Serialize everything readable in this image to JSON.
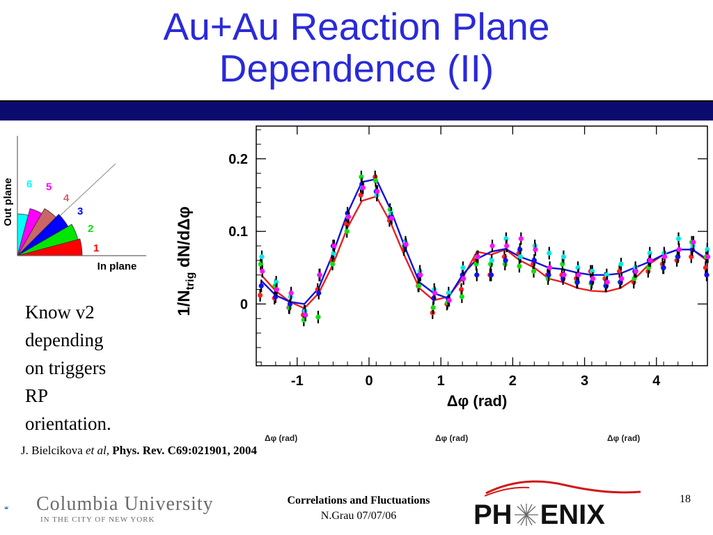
{
  "slide": {
    "title_line1": "Au+Au Reaction Plane",
    "title_line2": "Dependence (II)",
    "body_lines": [
      "Know v2",
      "depending",
      "on triggers",
      "RP",
      "orientation."
    ],
    "citation_author": "J. Bielcikova",
    "citation_etal": "et al",
    "citation_sep": ",",
    "citation_ref": "Phys. Rev. C69:021901, 2004",
    "ghost_labels": [
      "Δφ (rad)",
      "Δφ (rad)",
      "Δφ (rad)"
    ],
    "footer_title": "Correlations and Fluctuations",
    "footer_author_date": "N.Grau 07/07/06",
    "page_number": "18"
  },
  "logos": {
    "columbia_name": "Columbia University",
    "columbia_sub": "IN THE CITY OF NEW YORK",
    "phenix_left": "PH",
    "phenix_right": "ENIX"
  },
  "inset": {
    "y_label": "Out plane",
    "x_label": "In plane",
    "wedges": [
      {
        "label": "1",
        "color": "#ff0000"
      },
      {
        "label": "2",
        "color": "#00e600"
      },
      {
        "label": "3",
        "color": "#0000ff"
      },
      {
        "label": "4",
        "color": "#cc6666"
      },
      {
        "label": "5",
        "color": "#ff00ff"
      },
      {
        "label": "6",
        "color": "#00ffff"
      }
    ]
  },
  "chart_data": {
    "type": "line",
    "ylabel_main": "1/N",
    "ylabel_sub": "trig",
    "ylabel_rest": " dN/dΔφ",
    "xlabel": "Δφ (rad)",
    "xlim": [
      -1.57,
      4.71
    ],
    "ylim": [
      -0.085,
      0.245
    ],
    "xticks": [
      -1,
      0,
      1,
      2,
      3,
      4
    ],
    "xtick_labels": [
      "-1",
      "0",
      "1",
      "2",
      "3",
      "4"
    ],
    "yticks": [
      0,
      0.1,
      0.2
    ],
    "ytick_labels": [
      "0",
      "0.1",
      "0.2"
    ],
    "x": [
      -1.5,
      -1.3,
      -1.1,
      -0.9,
      -0.7,
      -0.5,
      -0.3,
      -0.1,
      0.1,
      0.3,
      0.5,
      0.7,
      0.9,
      1.1,
      1.3,
      1.5,
      1.7,
      1.9,
      2.1,
      2.3,
      2.5,
      2.7,
      2.9,
      3.1,
      3.3,
      3.5,
      3.7,
      3.9,
      4.1,
      4.3,
      4.5,
      4.7
    ],
    "lines": [
      {
        "color": "#e82020",
        "values": [
          0.04,
          0.018,
          0.003,
          -0.006,
          0.015,
          0.055,
          0.105,
          0.142,
          0.148,
          0.112,
          0.065,
          0.022,
          0.005,
          0.01,
          0.035,
          0.072,
          0.068,
          0.075,
          0.06,
          0.05,
          0.035,
          0.03,
          0.022,
          0.018,
          0.017,
          0.022,
          0.035,
          0.055,
          0.068,
          0.075,
          0.075,
          0.06
        ]
      },
      {
        "color": "#1010e0",
        "values": [
          0.032,
          0.012,
          0.003,
          0.0,
          0.022,
          0.07,
          0.125,
          0.168,
          0.172,
          0.13,
          0.078,
          0.03,
          0.015,
          0.008,
          0.04,
          0.062,
          0.072,
          0.076,
          0.065,
          0.058,
          0.05,
          0.048,
          0.043,
          0.04,
          0.04,
          0.042,
          0.05,
          0.058,
          0.068,
          0.075,
          0.075,
          0.062
        ]
      }
    ],
    "points": [
      {
        "color": "#ff2020",
        "values": [
          0.012,
          0.008,
          -0.005,
          -0.015,
          0.02,
          0.06,
          0.11,
          0.15,
          0.175,
          0.115,
          0.075,
          0.025,
          -0.012,
          0.0,
          0.02,
          0.06,
          0.04,
          0.065,
          0.07,
          0.055,
          0.04,
          0.04,
          0.035,
          0.045,
          0.035,
          0.045,
          0.03,
          0.045,
          0.055,
          0.06,
          0.065,
          0.05
        ]
      },
      {
        "color": "#10e010",
        "values": [
          0.055,
          0.025,
          -0.005,
          -0.022,
          -0.018,
          0.055,
          0.1,
          0.175,
          0.17,
          0.13,
          0.08,
          0.025,
          -0.005,
          0.002,
          0.01,
          0.055,
          0.055,
          0.055,
          0.052,
          0.045,
          0.035,
          0.055,
          0.03,
          0.028,
          0.025,
          0.03,
          0.035,
          0.05,
          0.05,
          0.065,
          0.085,
          0.065
        ]
      },
      {
        "color": "#1010ff",
        "values": [
          0.025,
          0.01,
          0.0,
          -0.01,
          0.015,
          0.08,
          0.125,
          0.165,
          0.155,
          0.12,
          0.08,
          0.04,
          0.008,
          0.008,
          0.04,
          0.04,
          0.04,
          0.06,
          0.075,
          0.06,
          0.04,
          0.035,
          0.03,
          0.03,
          0.025,
          0.03,
          0.045,
          0.06,
          0.05,
          0.065,
          0.075,
          0.04
        ]
      },
      {
        "color": "#00e8e8",
        "values": [
          0.065,
          0.03,
          0.01,
          -0.01,
          0.04,
          0.07,
          0.12,
          0.16,
          0.15,
          0.125,
          0.085,
          0.045,
          0.02,
          0.015,
          0.05,
          0.065,
          0.06,
          0.09,
          0.065,
          0.08,
          0.07,
          0.065,
          0.05,
          0.045,
          0.04,
          0.055,
          0.05,
          0.07,
          0.07,
          0.09,
          0.08,
          0.075
        ]
      },
      {
        "color": "#ff10ff",
        "values": [
          0.045,
          0.02,
          0.015,
          -0.015,
          0.04,
          0.08,
          0.12,
          0.16,
          0.155,
          0.118,
          0.082,
          0.04,
          0.015,
          0.005,
          0.035,
          0.065,
          0.08,
          0.08,
          0.09,
          0.075,
          0.05,
          0.04,
          0.04,
          0.035,
          0.03,
          0.035,
          0.045,
          0.06,
          0.065,
          0.075,
          0.085,
          0.065
        ]
      }
    ]
  }
}
